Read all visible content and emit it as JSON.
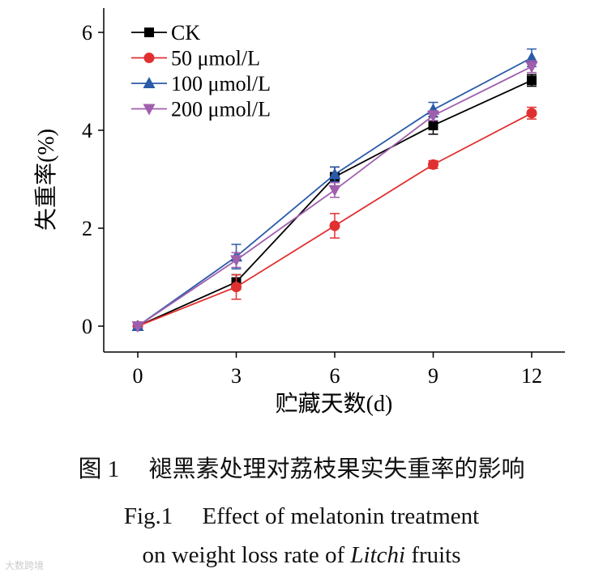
{
  "chart_data": {
    "type": "line",
    "x": [
      0,
      3,
      6,
      9,
      12
    ],
    "xlabel": "贮藏天数(d)",
    "ylabel": "失重率(%)",
    "xticks": [
      "0",
      "3",
      "6",
      "9",
      "12"
    ],
    "yticks": [
      "0",
      "2",
      "4",
      "6"
    ],
    "xlim": [
      -1,
      13.2
    ],
    "ylim": [
      -0.5,
      6.5
    ],
    "grid": false,
    "legend_position": "top-left",
    "series": [
      {
        "name": "CK",
        "color": "#000000",
        "marker": "square",
        "values": [
          0,
          0.9,
          3.05,
          4.1,
          5.02
        ],
        "errors": [
          0.03,
          0.15,
          0.2,
          0.18,
          0.12
        ]
      },
      {
        "name": "50 μmol/L",
        "color": "#e03030",
        "marker": "circle",
        "values": [
          0,
          0.8,
          2.05,
          3.3,
          4.35
        ],
        "errors": [
          0.03,
          0.25,
          0.25,
          0.08,
          0.12
        ]
      },
      {
        "name": "100 μmol/L",
        "color": "#2a5aa8",
        "marker": "triangle-up",
        "values": [
          0,
          1.42,
          3.1,
          4.42,
          5.48
        ],
        "errors": [
          0.03,
          0.25,
          0.15,
          0.15,
          0.18
        ]
      },
      {
        "name": "200 μmol/L",
        "color": "#a05fad",
        "marker": "triangle-down",
        "values": [
          0,
          1.35,
          2.78,
          4.3,
          5.3
        ],
        "errors": [
          0.03,
          0.15,
          0.15,
          0.1,
          0.12
        ]
      }
    ]
  },
  "caption": {
    "cn": "图 1　 褪黑素处理对荔枝果实失重率的影响",
    "en_line1": "Fig.1　 Effect of melatonin treatment",
    "en_line2_pre": "on weight loss rate of ",
    "en_line2_italic": "Litchi",
    "en_line2_post": " fruits"
  },
  "watermark": "大数跨境"
}
